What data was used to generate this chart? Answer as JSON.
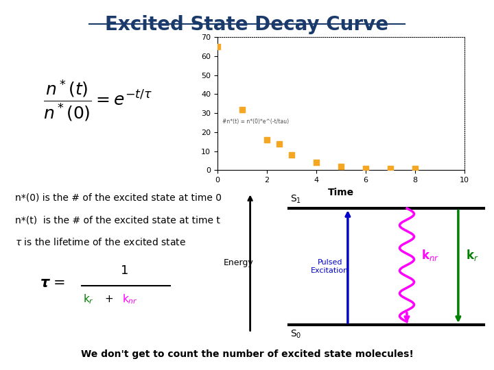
{
  "title": "Excited State Decay Curve",
  "title_color": "#1a3a6b",
  "title_fontsize": 20,
  "scatter_x": [
    0,
    1,
    2,
    2.5,
    3,
    4,
    5,
    6,
    7,
    8
  ],
  "scatter_y": [
    65,
    32,
    16,
    14,
    8,
    4,
    2,
    1,
    1,
    1
  ],
  "scatter_color": "#f5a623",
  "scatter_xlim": [
    0,
    10
  ],
  "scatter_ylim": [
    0,
    70
  ],
  "scatter_xlabel": "Time",
  "scatter_yticks": [
    0,
    10,
    20,
    30,
    40,
    50,
    60,
    70
  ],
  "scatter_xticks": [
    0,
    2,
    4,
    6,
    8,
    10
  ],
  "text_n0": "n*(0) is the # of the excited state at time 0",
  "text_nt": "n*(t)  is the # of the excited state at time t",
  "text_tau": "τ is the lifetime of the excited state",
  "text_bottom": "We don't get to count the number of excited state molecules!",
  "energy_label": "Energy",
  "s1_label": "S$_1$",
  "s0_label": "S$_0$",
  "pulsed_label": "Pulsed\nExcitation",
  "blue_color": "#0000cc",
  "magenta_color": "#ff00ff",
  "green_color": "#008000",
  "background": "#ffffff"
}
